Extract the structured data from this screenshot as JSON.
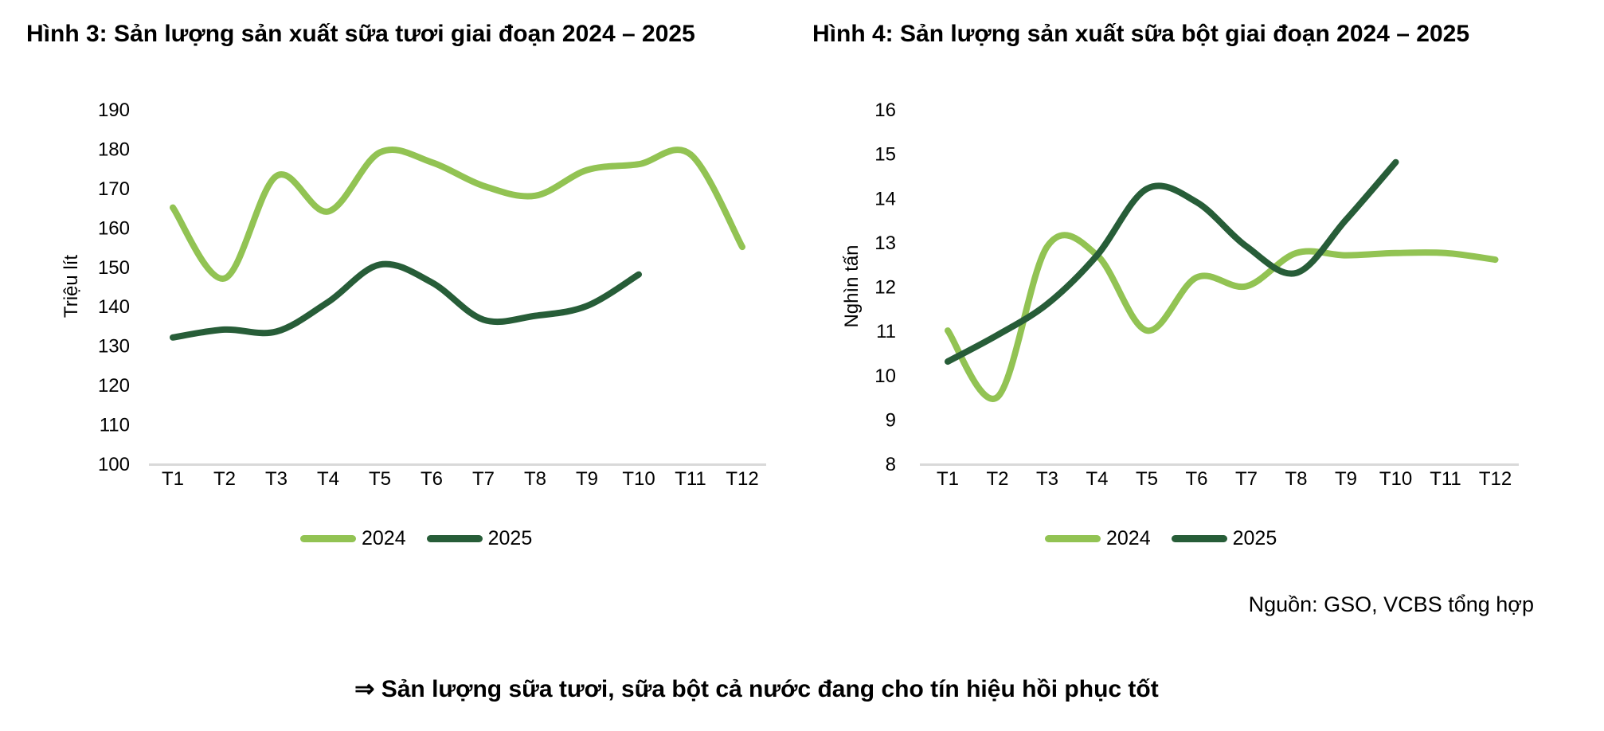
{
  "page": {
    "background": "#FFFFFF",
    "text_color": "#000000",
    "axis_line_color": "#D9D9D9",
    "source_note": "Nguồn: GSO, VCBS tổng hợp",
    "conclusion": "⇒ Sản lượng sữa tươi, sữa bột cả nước đang cho tín hiệu hồi phục tốt"
  },
  "chart_data": [
    {
      "type": "line",
      "title": "Hình 3: Sản lượng sản xuất sữa tươi giai đoạn 2024 – 2025",
      "ylabel": "Triệu lít",
      "xlabel": "",
      "ylim": [
        100,
        190
      ],
      "y_step": 10,
      "grid": false,
      "legend_position": "bottom-center",
      "categories": [
        "T1",
        "T2",
        "T3",
        "T4",
        "T5",
        "T6",
        "T7",
        "T8",
        "T9",
        "T10",
        "T11",
        "T12"
      ],
      "series": [
        {
          "name": "2024",
          "color": "#92C353",
          "values": [
            165,
            147,
            173,
            164,
            179,
            176.5,
            170.5,
            168,
            174.5,
            176,
            178.5,
            155
          ]
        },
        {
          "name": "2025",
          "color": "#275D38",
          "values": [
            132,
            134,
            133.5,
            141,
            150.5,
            146,
            136.5,
            137.5,
            140,
            148
          ]
        }
      ]
    },
    {
      "type": "line",
      "title": "Hình 4: Sản lượng sản xuất sữa bột giai đoạn 2024 – 2025",
      "ylabel": "Nghìn tấn",
      "xlabel": "",
      "ylim": [
        8,
        16
      ],
      "y_step": 1,
      "grid": false,
      "legend_position": "bottom-center",
      "categories": [
        "T1",
        "T2",
        "T3",
        "T4",
        "T5",
        "T6",
        "T7",
        "T8",
        "T9",
        "T10",
        "T11",
        "T12"
      ],
      "series": [
        {
          "name": "2024",
          "color": "#92C353",
          "values": [
            11,
            9.5,
            12.9,
            12.7,
            11,
            12.2,
            12,
            12.75,
            12.7,
            12.75,
            12.75,
            12.6
          ]
        },
        {
          "name": "2025",
          "color": "#275D38",
          "values": [
            10.3,
            10.9,
            11.6,
            12.7,
            14.2,
            13.9,
            12.9,
            12.3,
            13.5,
            14.8
          ]
        }
      ]
    }
  ]
}
